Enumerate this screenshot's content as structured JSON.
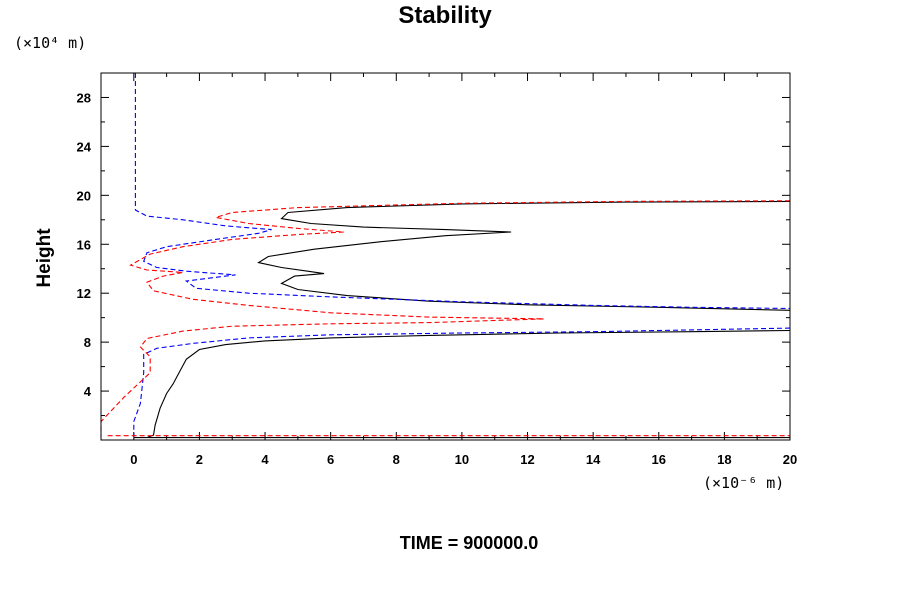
{
  "chart_data": {
    "type": "line",
    "title": "Stability",
    "ylabel": "Height",
    "y_unit_label": "(×10⁴ m)",
    "x_unit_label": "(×10⁻⁶ m)",
    "footer": "TIME = 900000.0",
    "xlim": [
      -1,
      20
    ],
    "ylim": [
      0,
      30
    ],
    "x_ticks": [
      0,
      2,
      4,
      6,
      8,
      10,
      12,
      14,
      16,
      18,
      20
    ],
    "y_ticks": [
      4,
      8,
      12,
      16,
      20,
      24,
      28
    ],
    "x_tick_labels": [
      "0",
      "2",
      "4",
      "6",
      "8",
      "10",
      "12",
      "14",
      "16",
      "18",
      "20"
    ],
    "y_tick_labels": [
      "4",
      "8",
      "12",
      "16",
      "20",
      "24",
      "28"
    ],
    "grid": false,
    "legend": "none",
    "series": [
      {
        "color": "#000000",
        "dash": "solid",
        "points": [
          [
            0,
            0.2
          ],
          [
            20,
            0.2
          ],
          null,
          [
            0.4,
            0.2
          ],
          [
            0.6,
            0.4
          ],
          [
            0.65,
            1.2
          ],
          [
            0.8,
            2.6
          ],
          [
            1.0,
            3.8
          ],
          [
            1.2,
            4.6
          ],
          [
            1.4,
            5.6
          ],
          [
            1.6,
            6.6
          ],
          [
            2.0,
            7.4
          ],
          [
            2.8,
            7.8
          ],
          [
            4.0,
            8.1
          ],
          [
            6.0,
            8.35
          ],
          [
            9.0,
            8.55
          ],
          [
            13.0,
            8.75
          ],
          [
            17.0,
            8.85
          ],
          [
            20.0,
            8.95
          ],
          null,
          [
            20.0,
            10.6
          ],
          [
            16.0,
            10.85
          ],
          [
            12.0,
            11.05
          ],
          [
            9.0,
            11.35
          ],
          [
            6.5,
            11.8
          ],
          [
            5.0,
            12.3
          ],
          [
            4.5,
            12.8
          ],
          [
            4.9,
            13.4
          ],
          [
            5.8,
            13.6
          ],
          [
            5.3,
            13.8
          ],
          [
            4.5,
            14.1
          ],
          [
            3.8,
            14.5
          ],
          [
            4.1,
            15.0
          ],
          [
            5.5,
            15.6
          ],
          [
            7.5,
            16.2
          ],
          [
            9.5,
            16.7
          ],
          [
            11.5,
            17.0
          ],
          [
            9.5,
            17.2
          ],
          [
            7.0,
            17.4
          ],
          [
            5.4,
            17.7
          ],
          [
            4.5,
            18.1
          ],
          [
            4.7,
            18.6
          ],
          [
            6.5,
            19.0
          ],
          [
            10.0,
            19.3
          ],
          [
            15.0,
            19.45
          ],
          [
            20.0,
            19.5
          ]
        ]
      },
      {
        "color": "#0000ff",
        "dash": "dashed",
        "points": [
          [
            0.05,
            30
          ],
          [
            0.05,
            18.8
          ],
          [
            0.4,
            18.3
          ],
          [
            1.5,
            18.0
          ],
          [
            2.8,
            17.5
          ],
          [
            4.2,
            17.2
          ],
          [
            3.8,
            16.9
          ],
          [
            2.5,
            16.4
          ],
          [
            1.0,
            15.8
          ],
          [
            0.4,
            15.3
          ],
          [
            0.3,
            14.6
          ],
          [
            0.7,
            14.1
          ],
          [
            1.6,
            13.8
          ],
          [
            3.1,
            13.5
          ],
          [
            2.5,
            13.3
          ],
          [
            1.6,
            13.0
          ],
          [
            1.9,
            12.4
          ],
          [
            3.5,
            12.0
          ],
          [
            6.0,
            11.7
          ],
          [
            10.0,
            11.3
          ],
          [
            14.0,
            11.0
          ],
          [
            17.0,
            10.85
          ],
          [
            20.0,
            10.75
          ],
          null,
          [
            20.0,
            9.15
          ],
          [
            17.0,
            9.0
          ],
          [
            14.0,
            8.85
          ],
          [
            10.0,
            8.75
          ],
          [
            6.0,
            8.6
          ],
          [
            3.5,
            8.35
          ],
          [
            1.8,
            7.9
          ],
          [
            0.7,
            7.5
          ],
          [
            0.3,
            7.0
          ],
          [
            0.3,
            5.5
          ],
          [
            0.2,
            3.0
          ],
          [
            0.0,
            1.5
          ],
          [
            0.0,
            0.3
          ]
        ]
      },
      {
        "color": "#ff0000",
        "dash": "dashed",
        "points": [
          [
            20.0,
            19.55
          ],
          [
            15.0,
            19.5
          ],
          [
            10.0,
            19.35
          ],
          [
            5.0,
            19.0
          ],
          [
            3.0,
            18.6
          ],
          [
            2.5,
            18.2
          ],
          [
            3.5,
            17.7
          ],
          [
            5.0,
            17.3
          ],
          [
            6.4,
            17.0
          ],
          [
            5.0,
            16.8
          ],
          [
            3.0,
            16.4
          ],
          [
            1.5,
            15.8
          ],
          [
            0.5,
            15.2
          ],
          [
            -0.1,
            14.3
          ],
          [
            0.4,
            13.9
          ],
          [
            1.5,
            13.7
          ],
          [
            0.9,
            13.4
          ],
          [
            0.4,
            12.9
          ],
          [
            0.6,
            12.2
          ],
          [
            1.8,
            11.5
          ],
          [
            3.5,
            11.0
          ],
          [
            6.0,
            10.4
          ],
          [
            9.0,
            10.05
          ],
          [
            12.5,
            9.9
          ],
          [
            9.0,
            9.6
          ],
          [
            6.0,
            9.5
          ],
          [
            3.0,
            9.3
          ],
          [
            1.5,
            8.9
          ],
          [
            0.4,
            8.3
          ],
          [
            0.2,
            7.6
          ],
          [
            0.5,
            6.8
          ],
          [
            0.5,
            5.5
          ],
          [
            -0.3,
            3.5
          ],
          [
            -1.0,
            1.5
          ],
          [
            -1.0,
            0.3
          ],
          null,
          [
            -0.8,
            0.35
          ],
          [
            20,
            0.35
          ]
        ]
      }
    ]
  }
}
